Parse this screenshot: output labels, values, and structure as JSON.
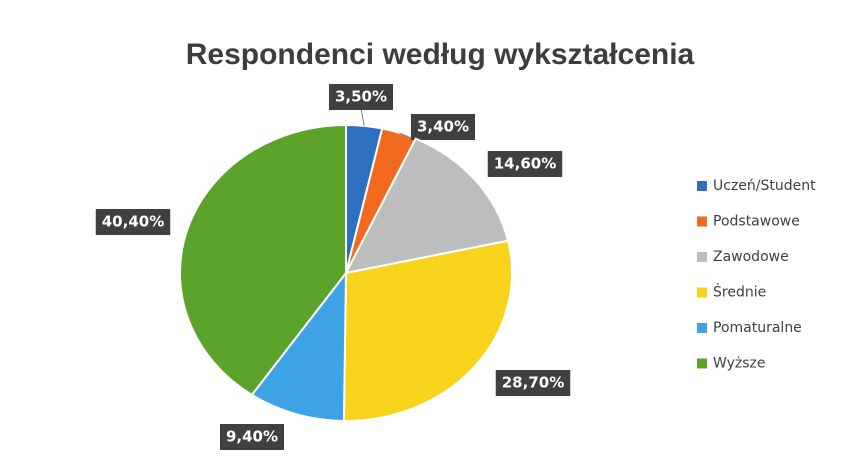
{
  "chart_data": {
    "type": "pie",
    "title": "Respondenci według wykształcenia",
    "categories": [
      "Uczeń/Student",
      "Podstawowe",
      "Zawodowe",
      "Średnie",
      "Pomaturalne",
      "Wyższe"
    ],
    "values": [
      3.5,
      3.4,
      14.6,
      28.7,
      9.4,
      40.4
    ],
    "value_labels": [
      "3,50%",
      "3,40%",
      "14,60%",
      "28,70%",
      "9,40%",
      "40,40%"
    ],
    "colors": [
      "#2f6fbf",
      "#f26a1f",
      "#bdbdbd",
      "#f7d31c",
      "#3ea2e6",
      "#5ba32b"
    ],
    "legend": "right"
  }
}
